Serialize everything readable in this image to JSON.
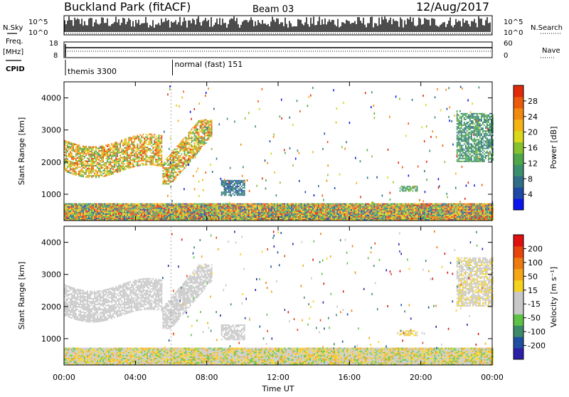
{
  "header": {
    "station": "Buckland Park (fitACF)",
    "beam": "Beam 03",
    "date": "12/Aug/2017"
  },
  "left_labels": {
    "nsky": "N.Sky",
    "freq": "Freq.",
    "mhz": "[MHz]",
    "cpid": "CPID"
  },
  "right_labels": {
    "nsearch": "N.Search",
    "nave": "Nave"
  },
  "noise_axis": {
    "top": "10^5",
    "bottom": "10^0"
  },
  "freq_axis": {
    "left": [
      "18",
      "8"
    ],
    "right": [
      "60",
      "0"
    ]
  },
  "cpid_entries": [
    {
      "text": "themis 3300",
      "time_hours": 0.0
    },
    {
      "text": "normal (fast) 151",
      "time_hours": 6.0
    }
  ],
  "colors": {
    "power": [
      "#0a14ee",
      "#1f49a6",
      "#2f6e86",
      "#3a8f6e",
      "#4ea84a",
      "#86c22e",
      "#d9d81a",
      "#f3b414",
      "#f28a10",
      "#ec5a0c",
      "#e02a0a"
    ],
    "velocity": [
      "#2b1fa8",
      "#1e4fa0",
      "#3b8a6a",
      "#5ec245",
      "#c8c8c8",
      "#c8c8c8",
      "#f5d21e",
      "#f4a614",
      "#ef7a10",
      "#e8440c",
      "#e01010"
    ]
  },
  "chart_data": [
    {
      "type": "heatmap",
      "name": "power",
      "ylabel": "Slant Range [km]",
      "xlabel": "Time UT",
      "xlim": [
        0,
        24
      ],
      "ylim": [
        180,
        4500
      ],
      "x_ticks": [
        "00:00",
        "04:00",
        "08:00",
        "12:00",
        "16:00",
        "20:00",
        "00:00"
      ],
      "y_ticks": [
        1000,
        2000,
        3000,
        4000
      ],
      "colorbar": {
        "label": "Power [dB]",
        "ticks": [
          "28",
          "24",
          "20",
          "16",
          "12",
          "8",
          "4"
        ],
        "range": [
          0,
          30
        ]
      },
      "features": [
        {
          "region": "echo band",
          "time_start": 0.0,
          "time_end": 8.3,
          "range_min": 1300,
          "range_max": 3300,
          "power_db": [
            10,
            28
          ]
        },
        {
          "region": "echo patch",
          "time_start": 8.8,
          "time_end": 10.1,
          "range_min": 950,
          "range_max": 1400,
          "power_db": [
            4,
            10
          ]
        },
        {
          "region": "echo patch",
          "time_start": 18.8,
          "time_end": 19.8,
          "range_min": 1080,
          "range_max": 1250,
          "power_db": [
            8,
            14
          ]
        },
        {
          "region": "echo patch",
          "time_start": 22.0,
          "time_end": 24.0,
          "range_min": 2000,
          "range_max": 3500,
          "power_db": [
            6,
            14
          ]
        },
        {
          "region": "near-range",
          "time_start": 0.0,
          "time_end": 24.0,
          "range_min": 180,
          "range_max": 700,
          "power_db": [
            4,
            30
          ]
        }
      ]
    },
    {
      "type": "heatmap",
      "name": "velocity",
      "ylabel": "Slant Range [km]",
      "xlabel": "Time UT",
      "xlim": [
        0,
        24
      ],
      "ylim": [
        180,
        4500
      ],
      "x_ticks": [
        "00:00",
        "04:00",
        "08:00",
        "12:00",
        "16:00",
        "20:00",
        "00:00"
      ],
      "y_ticks": [
        1000,
        2000,
        3000,
        4000
      ],
      "colorbar": {
        "label": "Velocity [m s⁻¹]",
        "ticks": [
          "200",
          "100",
          "50",
          "15",
          "-15",
          "-50",
          "-100",
          "-200"
        ],
        "range": [
          -250,
          250
        ]
      },
      "features": [
        {
          "region": "echo band",
          "time_start": 0.0,
          "time_end": 8.3,
          "range_min": 1300,
          "range_max": 3300,
          "velocity": [
            -15,
            15
          ]
        },
        {
          "region": "echo patch",
          "time_start": 8.8,
          "time_end": 10.1,
          "range_min": 950,
          "range_max": 1400,
          "velocity": [
            -15,
            15
          ]
        },
        {
          "region": "echo patch",
          "time_start": 18.8,
          "time_end": 19.8,
          "range_min": 1080,
          "range_max": 1250,
          "velocity": [
            15,
            50
          ]
        },
        {
          "region": "echo patch",
          "time_start": 22.0,
          "time_end": 24.0,
          "range_min": 2000,
          "range_max": 3500,
          "velocity": [
            -50,
            50
          ]
        },
        {
          "region": "near-range",
          "time_start": 0.0,
          "time_end": 24.0,
          "range_min": 180,
          "range_max": 700,
          "velocity": [
            -100,
            100
          ]
        }
      ]
    }
  ]
}
